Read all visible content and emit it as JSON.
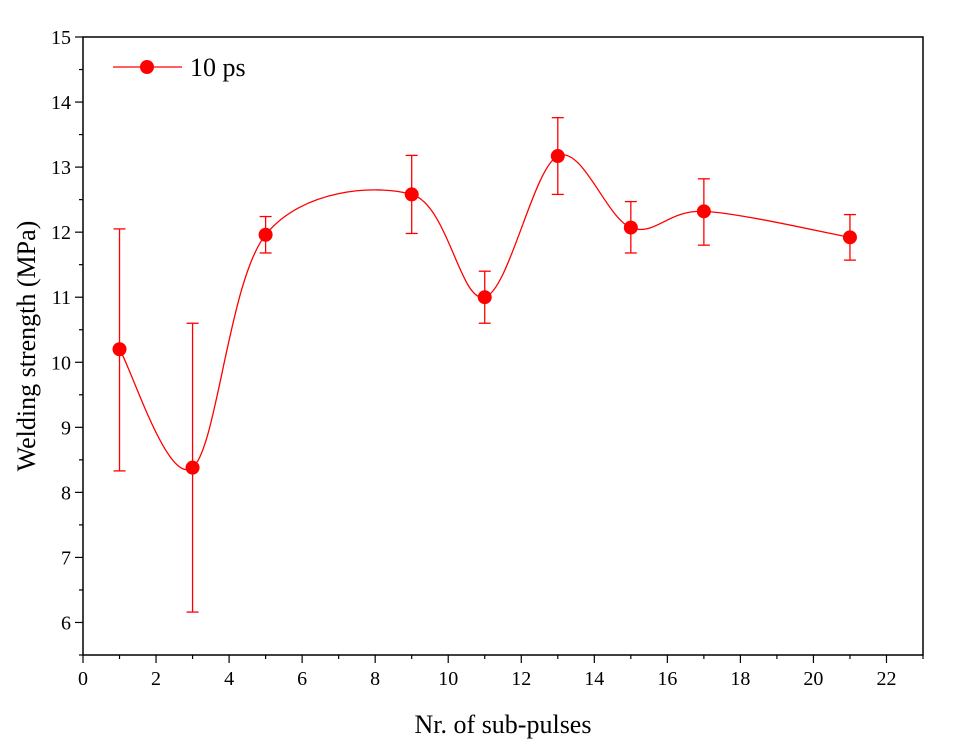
{
  "chart_data": {
    "type": "scatter",
    "xlabel": "Nr. of sub-pulses",
    "ylabel": "Welding strength (MPa)",
    "xlim": [
      0,
      23
    ],
    "ylim": [
      5.5,
      15
    ],
    "xticks": [
      0,
      2,
      4,
      6,
      8,
      10,
      12,
      14,
      16,
      18,
      20,
      22
    ],
    "yticks": [
      6,
      7,
      8,
      9,
      10,
      11,
      12,
      13,
      14,
      15
    ],
    "grid": false,
    "legend_position": "top-left",
    "series": [
      {
        "name": "10 ps",
        "color": "#ff0000",
        "marker": "circle",
        "fit_line": "smooth spline through points",
        "x": [
          1,
          3,
          5,
          9,
          11,
          13,
          15,
          17,
          21
        ],
        "y": [
          10.2,
          8.38,
          11.96,
          12.58,
          11.0,
          13.17,
          12.07,
          12.32,
          11.92
        ],
        "error_upper": [
          12.05,
          10.6,
          12.24,
          13.18,
          11.4,
          13.76,
          12.47,
          12.82,
          12.27
        ],
        "error_lower": [
          8.33,
          6.16,
          11.68,
          11.98,
          10.6,
          12.58,
          11.68,
          11.8,
          11.57
        ]
      }
    ]
  }
}
